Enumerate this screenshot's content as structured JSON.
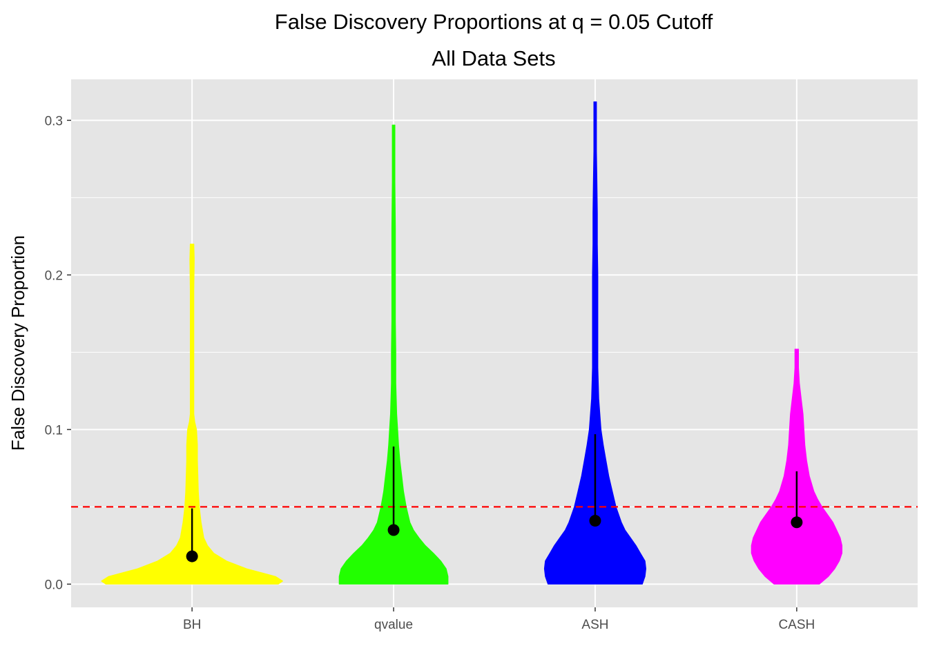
{
  "chart_data": {
    "type": "violin",
    "title": "False Discovery Proportions at q = 0.05 Cutoff",
    "subtitle": "All Data Sets",
    "xlabel": "",
    "ylabel": "False Discovery Proportion",
    "ylim": [
      -0.015,
      0.3265
    ],
    "yticks": [
      0.0,
      0.1,
      0.2,
      0.3
    ],
    "ytick_labels": [
      "0.0",
      "0.1",
      "0.2",
      "0.3"
    ],
    "grid": true,
    "legend": "none",
    "reference_line": {
      "y": 0.05,
      "style": "dashed",
      "color": "#ff0000"
    },
    "categories": [
      "BH",
      "qvalue",
      "ASH",
      "CASH"
    ],
    "series": [
      {
        "category": "BH",
        "color": "#ffff00",
        "median": 0.018,
        "whisker": [
          0.018,
          0.049
        ],
        "violin": [
          [
            0.0,
            0.95
          ],
          [
            0.002,
            1.0
          ],
          [
            0.005,
            0.92
          ],
          [
            0.01,
            0.6
          ],
          [
            0.015,
            0.38
          ],
          [
            0.02,
            0.24
          ],
          [
            0.025,
            0.17
          ],
          [
            0.03,
            0.13
          ],
          [
            0.04,
            0.1
          ],
          [
            0.05,
            0.08
          ],
          [
            0.06,
            0.07
          ],
          [
            0.07,
            0.065
          ],
          [
            0.08,
            0.06
          ],
          [
            0.09,
            0.06
          ],
          [
            0.1,
            0.05
          ],
          [
            0.105,
            0.03
          ],
          [
            0.11,
            0.02
          ],
          [
            0.13,
            0.02
          ],
          [
            0.16,
            0.02
          ],
          [
            0.19,
            0.02
          ],
          [
            0.21,
            0.025
          ],
          [
            0.22,
            0.02
          ]
        ]
      },
      {
        "category": "qvalue",
        "color": "#22ff00",
        "median": 0.035,
        "whisker": [
          0.035,
          0.089
        ],
        "violin": [
          [
            0.0,
            0.6
          ],
          [
            0.005,
            0.6
          ],
          [
            0.01,
            0.58
          ],
          [
            0.015,
            0.52
          ],
          [
            0.02,
            0.44
          ],
          [
            0.025,
            0.35
          ],
          [
            0.03,
            0.28
          ],
          [
            0.035,
            0.22
          ],
          [
            0.04,
            0.18
          ],
          [
            0.05,
            0.14
          ],
          [
            0.06,
            0.11
          ],
          [
            0.07,
            0.09
          ],
          [
            0.08,
            0.07
          ],
          [
            0.09,
            0.055
          ],
          [
            0.1,
            0.045
          ],
          [
            0.11,
            0.035
          ],
          [
            0.13,
            0.025
          ],
          [
            0.15,
            0.025
          ],
          [
            0.17,
            0.02
          ],
          [
            0.2,
            0.02
          ],
          [
            0.23,
            0.02
          ],
          [
            0.26,
            0.015
          ],
          [
            0.28,
            0.015
          ],
          [
            0.297,
            0.015
          ]
        ]
      },
      {
        "category": "ASH",
        "color": "#0000ff",
        "median": 0.041,
        "whisker": [
          0.041,
          0.097
        ],
        "violin": [
          [
            0.0,
            0.52
          ],
          [
            0.005,
            0.55
          ],
          [
            0.01,
            0.56
          ],
          [
            0.015,
            0.55
          ],
          [
            0.02,
            0.5
          ],
          [
            0.025,
            0.45
          ],
          [
            0.03,
            0.39
          ],
          [
            0.035,
            0.33
          ],
          [
            0.04,
            0.29
          ],
          [
            0.05,
            0.23
          ],
          [
            0.06,
            0.19
          ],
          [
            0.07,
            0.15
          ],
          [
            0.08,
            0.12
          ],
          [
            0.09,
            0.09
          ],
          [
            0.1,
            0.065
          ],
          [
            0.12,
            0.04
          ],
          [
            0.14,
            0.03
          ],
          [
            0.16,
            0.03
          ],
          [
            0.18,
            0.03
          ],
          [
            0.2,
            0.03
          ],
          [
            0.22,
            0.025
          ],
          [
            0.24,
            0.025
          ],
          [
            0.26,
            0.02
          ],
          [
            0.28,
            0.015
          ],
          [
            0.3,
            0.015
          ],
          [
            0.312,
            0.015
          ]
        ]
      },
      {
        "category": "CASH",
        "color": "#ff00ff",
        "median": 0.04,
        "whisker": [
          0.04,
          0.073
        ],
        "violin": [
          [
            0.0,
            0.25
          ],
          [
            0.005,
            0.35
          ],
          [
            0.01,
            0.42
          ],
          [
            0.015,
            0.47
          ],
          [
            0.02,
            0.5
          ],
          [
            0.025,
            0.5
          ],
          [
            0.03,
            0.48
          ],
          [
            0.035,
            0.44
          ],
          [
            0.04,
            0.4
          ],
          [
            0.045,
            0.34
          ],
          [
            0.05,
            0.28
          ],
          [
            0.055,
            0.23
          ],
          [
            0.06,
            0.19
          ],
          [
            0.07,
            0.14
          ],
          [
            0.08,
            0.11
          ],
          [
            0.09,
            0.09
          ],
          [
            0.1,
            0.08
          ],
          [
            0.11,
            0.07
          ],
          [
            0.12,
            0.05
          ],
          [
            0.13,
            0.03
          ],
          [
            0.14,
            0.02
          ],
          [
            0.152,
            0.02
          ]
        ]
      }
    ]
  }
}
